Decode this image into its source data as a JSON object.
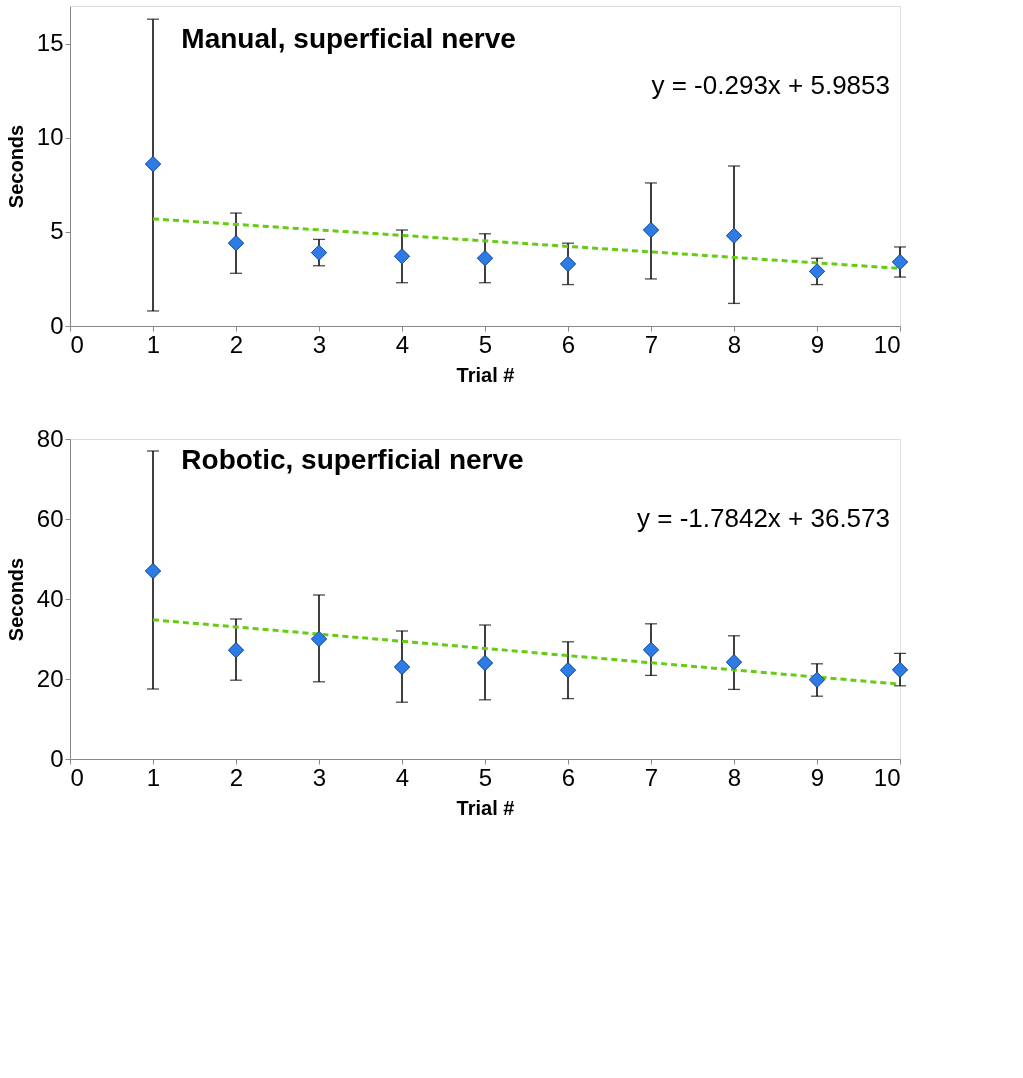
{
  "chart_data": [
    {
      "type": "scatter",
      "title": "Manual, superficial nerve",
      "xlabel": "Trial #",
      "ylabel": "Seconds",
      "annotations": [
        "y = -0.293x + 5.9853"
      ],
      "xlim": [
        0,
        10
      ],
      "xticks": [
        0,
        1,
        2,
        3,
        4,
        5,
        6,
        7,
        8,
        9,
        10
      ],
      "ylim": [
        0,
        17
      ],
      "yticks": [
        0,
        5,
        10,
        15
      ],
      "grid": false,
      "series": [
        {
          "color": "#2e7be6",
          "marker": "diamond",
          "x": [
            1,
            2,
            3,
            4,
            5,
            6,
            7,
            8,
            9,
            10
          ],
          "values": [
            8.6,
            4.4,
            3.9,
            3.7,
            3.6,
            3.3,
            5.1,
            4.8,
            2.9,
            3.4
          ],
          "errors": [
            [
              0.8,
              16.3
            ],
            [
              2.8,
              6.0
            ],
            [
              3.2,
              4.6
            ],
            [
              2.3,
              5.1
            ],
            [
              2.3,
              4.9
            ],
            [
              2.2,
              4.4
            ],
            [
              2.5,
              7.6
            ],
            [
              1.2,
              8.5
            ],
            [
              2.2,
              3.6
            ],
            [
              2.6,
              4.2
            ]
          ]
        },
        {
          "type": "line",
          "color": "#66cc11",
          "line_style": "dashed",
          "marker": "none",
          "x": [
            1,
            10
          ],
          "values": [
            5.69,
            3.06
          ]
        }
      ]
    },
    {
      "type": "scatter",
      "title": "Robotic, superficial nerve",
      "xlabel": "Trial #",
      "ylabel": "Seconds",
      "annotations": [
        "y = -1.7842x + 36.573"
      ],
      "xlim": [
        0,
        10
      ],
      "xticks": [
        0,
        1,
        2,
        3,
        4,
        5,
        6,
        7,
        8,
        9,
        10
      ],
      "ylim": [
        0,
        80
      ],
      "yticks": [
        0,
        20,
        40,
        60,
        80
      ],
      "grid": false,
      "series": [
        {
          "color": "#2e7be6",
          "marker": "diamond",
          "x": [
            1,
            2,
            3,
            4,
            5,
            6,
            7,
            8,
            9,
            10
          ],
          "values": [
            47,
            27.2,
            30,
            23,
            24,
            22.2,
            27.3,
            24.2,
            19.8,
            22.3
          ],
          "errors": [
            [
              17.5,
              77
            ],
            [
              19.7,
              35
            ],
            [
              19.3,
              41
            ],
            [
              14.2,
              32
            ],
            [
              14.8,
              33.5
            ],
            [
              15.1,
              29.3
            ],
            [
              20.9,
              33.8
            ],
            [
              17.4,
              30.8
            ],
            [
              15.7,
              23.8
            ],
            [
              18.3,
              26.4
            ]
          ]
        },
        {
          "type": "line",
          "color": "#66cc11",
          "line_style": "dashed",
          "marker": "none",
          "x": [
            1,
            10
          ],
          "values": [
            34.8,
            18.7
          ]
        }
      ]
    }
  ]
}
